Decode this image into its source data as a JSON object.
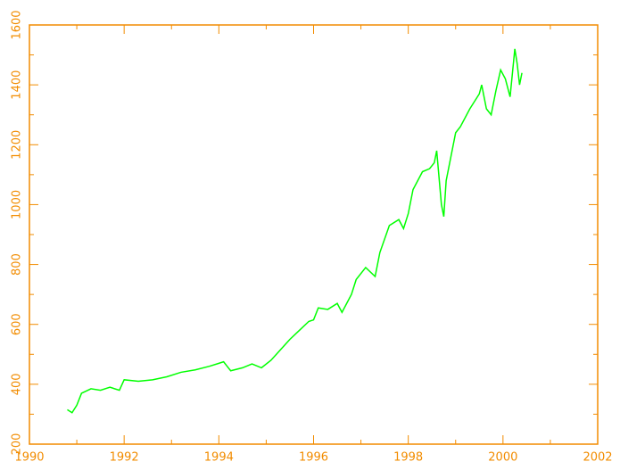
{
  "chart_data": {
    "type": "line",
    "x": [
      1990.8,
      1990.9,
      1991.0,
      1991.1,
      1991.3,
      1991.5,
      1991.7,
      1991.9,
      1992.0,
      1992.3,
      1992.6,
      1992.9,
      1993.2,
      1993.5,
      1993.8,
      1994.0,
      1994.1,
      1994.25,
      1994.5,
      1994.7,
      1994.9,
      1995.1,
      1995.3,
      1995.5,
      1995.7,
      1995.9,
      1996.0,
      1996.1,
      1996.3,
      1996.5,
      1996.6,
      1996.8,
      1996.9,
      1997.1,
      1997.3,
      1997.4,
      1997.6,
      1997.8,
      1997.9,
      1998.0,
      1998.1,
      1998.3,
      1998.45,
      1998.55,
      1998.6,
      1998.7,
      1998.75,
      1998.8,
      1998.9,
      1999.0,
      1999.1,
      1999.3,
      1999.5,
      1999.55,
      1999.65,
      1999.75,
      1999.85,
      1999.95,
      2000.05,
      2000.15,
      2000.25,
      2000.3,
      2000.35,
      2000.4
    ],
    "series": [
      {
        "color": "#00ff00",
        "values": [
          315,
          305,
          330,
          370,
          385,
          380,
          390,
          380,
          415,
          410,
          415,
          425,
          440,
          448,
          460,
          470,
          475,
          445,
          455,
          468,
          455,
          480,
          515,
          550,
          580,
          610,
          615,
          655,
          650,
          670,
          640,
          700,
          750,
          790,
          760,
          840,
          930,
          950,
          920,
          970,
          1050,
          1110,
          1120,
          1140,
          1180,
          1000,
          960,
          1080,
          1160,
          1240,
          1260,
          1320,
          1370,
          1400,
          1320,
          1300,
          1380,
          1450,
          1420,
          1360,
          1520,
          1470,
          1400,
          1440
        ]
      }
    ],
    "xlim": [
      1990,
      2002
    ],
    "xticks": [
      1990,
      1992,
      1994,
      1996,
      1998,
      2000,
      2002
    ],
    "ylim": [
      200,
      1600
    ],
    "yticks": [
      200,
      400,
      600,
      800,
      1000,
      1200,
      1400,
      1600
    ],
    "axis_color": "#f28c00"
  }
}
